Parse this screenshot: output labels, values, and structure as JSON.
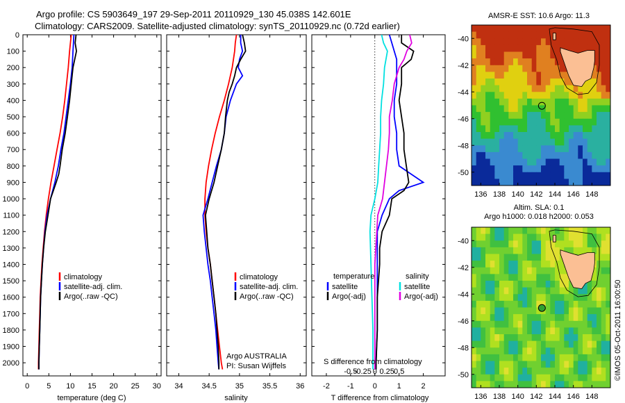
{
  "header": {
    "title_line1": "Argo profile: CS 5903649_197 29-Sep-2011 20110929_130 45.038S 142.601E",
    "title_line2": "Climatology: CARS2009. Satellite-adjusted climatology: synTS_20110929.nc (0.72d earlier)"
  },
  "colors": {
    "climatology": "#ff0000",
    "satellite": "#0000ff",
    "argo": "#000000",
    "satellite_salinity": "#00e0e0",
    "argo_salinity": "#e000e0"
  },
  "chart_data": [
    {
      "type": "line",
      "id": "temperature",
      "xlabel": "temperature (deg C)",
      "ylabel": "",
      "xlim": [
        -1,
        31
      ],
      "ylim": [
        2080,
        0
      ],
      "x_ticks": [
        0,
        5,
        10,
        15,
        20,
        25,
        30
      ],
      "y_ticks": [
        0,
        100,
        200,
        300,
        400,
        500,
        600,
        700,
        800,
        900,
        1000,
        1100,
        1200,
        1300,
        1400,
        1500,
        1600,
        1700,
        1800,
        1900,
        2000
      ],
      "legend": [
        "climatology",
        "satellite-adj. clim.",
        "Argo(..raw -QC)"
      ],
      "series": [
        {
          "name": "climatology",
          "color": "#ff0000",
          "depth": [
            0,
            50,
            100,
            200,
            300,
            400,
            500,
            600,
            700,
            800,
            900,
            1000,
            1100,
            1200,
            1300,
            1400,
            1500,
            1600,
            1700,
            1800,
            1900,
            2000,
            2040
          ],
          "values": [
            10.2,
            10.0,
            9.8,
            9.5,
            9.1,
            8.7,
            8.2,
            7.6,
            6.9,
            6.2,
            5.5,
            4.9,
            4.4,
            4.0,
            3.7,
            3.4,
            3.2,
            3.0,
            2.9,
            2.8,
            2.7,
            2.6,
            2.6
          ]
        },
        {
          "name": "satellite-adj. clim.",
          "color": "#0000ff",
          "depth": [
            0,
            50,
            100,
            200,
            300,
            400,
            500,
            600,
            700,
            800,
            900,
            1000,
            1100,
            1200,
            1300,
            1400,
            1500,
            1600,
            1700,
            1800,
            1900,
            2000,
            2040
          ],
          "values": [
            10.8,
            10.7,
            10.6,
            10.4,
            10.0,
            9.5,
            9.0,
            8.5,
            7.8,
            7.2,
            6.4,
            5.4,
            4.6,
            4.1,
            3.8,
            3.5,
            3.3,
            3.1,
            3.0,
            2.9,
            2.8,
            2.7,
            2.7
          ]
        },
        {
          "name": "Argo(..raw -QC)",
          "color": "#000000",
          "depth": [
            0,
            50,
            100,
            150,
            200,
            300,
            400,
            500,
            600,
            700,
            800,
            850,
            900,
            1000,
            1100,
            1200,
            1300,
            1400,
            1500,
            1600,
            1700,
            1800,
            1900,
            2000,
            2040
          ],
          "values": [
            11.3,
            11.1,
            11.4,
            11.0,
            10.6,
            10.2,
            9.8,
            9.3,
            8.8,
            8.1,
            7.6,
            7.3,
            6.7,
            5.4,
            4.8,
            4.2,
            3.8,
            3.5,
            3.3,
            3.1,
            3.0,
            2.9,
            2.8,
            2.7,
            2.7
          ]
        }
      ]
    },
    {
      "type": "line",
      "id": "salinity",
      "xlabel": "salinity",
      "ylabel": "",
      "xlim": [
        33.8,
        36.1
      ],
      "ylim": [
        2080,
        0
      ],
      "x_ticks": [
        34,
        34.5,
        35,
        35.5,
        36
      ],
      "legend": [
        "climatology",
        "satellite-adj. clim.",
        "Argo(..raw -QC)"
      ],
      "annotation": [
        "Argo AUSTRALIA",
        "PI: Susan Wijffels"
      ],
      "series": [
        {
          "name": "climatology",
          "color": "#ff0000",
          "depth": [
            0,
            50,
            100,
            200,
            300,
            400,
            500,
            600,
            700,
            800,
            900,
            1000,
            1100,
            1200,
            1300,
            1400,
            1500,
            1600,
            1700,
            1800,
            1900,
            2000,
            2040
          ],
          "values": [
            34.95,
            34.93,
            34.92,
            34.88,
            34.82,
            34.75,
            34.67,
            34.6,
            34.54,
            34.49,
            34.45,
            34.43,
            34.43,
            34.45,
            34.48,
            34.52,
            34.55,
            34.58,
            34.61,
            34.64,
            34.67,
            34.7,
            34.72
          ]
        },
        {
          "name": "satellite-adj. clim.",
          "color": "#0000ff",
          "depth": [
            0,
            50,
            100,
            150,
            200,
            250,
            300,
            400,
            500,
            600,
            700,
            800,
            900,
            1000,
            1100,
            1200,
            1300,
            1400,
            1500,
            1600,
            1700,
            1800,
            1900,
            2000,
            2040
          ],
          "values": [
            35.02,
            35.02,
            35.05,
            35.0,
            34.98,
            35.05,
            34.95,
            34.85,
            34.78,
            34.75,
            34.7,
            34.62,
            34.55,
            34.48,
            34.4,
            34.42,
            34.45,
            34.48,
            34.52,
            34.55,
            34.58,
            34.61,
            34.63,
            34.65,
            34.66
          ]
        },
        {
          "name": "Argo(..raw -QC)",
          "color": "#000000",
          "depth": [
            0,
            50,
            100,
            150,
            200,
            250,
            300,
            350,
            400,
            500,
            600,
            700,
            800,
            900,
            1000,
            1100,
            1200,
            1300,
            1400,
            1500,
            1600,
            1700,
            1800,
            1900,
            2000,
            2040
          ],
          "values": [
            35.05,
            35.08,
            35.1,
            35.02,
            34.95,
            34.92,
            34.88,
            34.83,
            34.8,
            34.77,
            34.75,
            34.7,
            34.64,
            34.58,
            34.5,
            34.44,
            34.46,
            34.48,
            34.52,
            34.55,
            34.58,
            34.61,
            34.63,
            34.65,
            34.66,
            34.66
          ]
        }
      ]
    },
    {
      "type": "line",
      "id": "differences",
      "xlabel": "T difference from climatology",
      "xlabel_top": "S difference from climatology",
      "xlim": [
        -2.6,
        2.9
      ],
      "ylim": [
        2080,
        0
      ],
      "x_ticks": [
        -2,
        -1,
        0,
        1,
        2
      ],
      "x_ticks_s": [
        "-0.5",
        "-0.25",
        "0",
        "0.25",
        "0.5"
      ],
      "legend_left_title": "temperature",
      "legend_right_title": "salinity",
      "legend_left": [
        "satellite",
        "Argo(-adj)"
      ],
      "legend_right": [
        "satellite",
        "Argo(-adj)"
      ],
      "series": [
        {
          "name": "satellite",
          "quantity": "temperature",
          "color": "#0000ff",
          "depth": [
            0,
            50,
            100,
            150,
            200,
            300,
            400,
            500,
            600,
            700,
            800,
            850,
            900,
            950,
            1000,
            1100,
            1200,
            1400,
            1600,
            1800,
            2000,
            2040
          ],
          "values": [
            0.6,
            0.7,
            0.8,
            0.9,
            0.9,
            0.9,
            0.8,
            0.8,
            0.9,
            0.9,
            1.0,
            1.5,
            2.0,
            1.0,
            0.6,
            0.3,
            0.1,
            0.1,
            0.1,
            0.1,
            0.05,
            0.05
          ]
        },
        {
          "name": "Argo(-adj)",
          "quantity": "temperature",
          "color": "#000000",
          "depth": [
            0,
            50,
            100,
            150,
            200,
            300,
            400,
            500,
            600,
            700,
            800,
            900,
            950,
            1000,
            1100,
            1200,
            1300,
            1400,
            1600,
            1800,
            2000,
            2040
          ],
          "values": [
            1.1,
            1.1,
            1.6,
            1.5,
            1.1,
            1.1,
            1.0,
            1.1,
            1.2,
            1.2,
            1.3,
            1.4,
            1.2,
            0.7,
            0.6,
            0.3,
            0.2,
            0.2,
            0.1,
            0.1,
            0.05,
            0.05
          ]
        },
        {
          "name": "satellite",
          "quantity": "salinity",
          "color": "#00e0e0",
          "depth": [
            0,
            50,
            100,
            200,
            300,
            400,
            500,
            600,
            700,
            800,
            900,
            1000,
            1100,
            1200,
            1400,
            1600,
            1800,
            2000,
            2040
          ],
          "values": [
            0.07,
            0.09,
            0.13,
            0.1,
            0.09,
            0.07,
            0.06,
            0.06,
            0.05,
            0.04,
            0.03,
            0.0,
            -0.04,
            -0.05,
            -0.04,
            -0.03,
            -0.02,
            -0.02,
            -0.02
          ]
        },
        {
          "name": "Argo(-adj)",
          "quantity": "salinity",
          "color": "#e000e0",
          "depth": [
            0,
            50,
            100,
            150,
            200,
            300,
            400,
            500,
            600,
            700,
            800,
            900,
            1000,
            1100,
            1200,
            1400,
            1600,
            1800,
            2000,
            2040
          ],
          "values": [
            0.36,
            0.38,
            0.33,
            0.3,
            0.25,
            0.2,
            0.18,
            0.15,
            0.15,
            0.14,
            0.12,
            0.1,
            0.08,
            0.03,
            0.02,
            0.0,
            0.0,
            0.0,
            0.0,
            0.0
          ]
        }
      ]
    },
    {
      "type": "heatmap",
      "id": "sst-map",
      "title": "AMSR-E SST: 10.6  Argo: 11.3",
      "x_ticks": [
        "136",
        "138",
        "140",
        "142",
        "144",
        "146",
        "148"
      ],
      "y_ticks": [
        "-40",
        "-42",
        "-44",
        "-46",
        "-48",
        "-50"
      ],
      "xlim": [
        135,
        150
      ],
      "ylim": [
        -51,
        -39
      ],
      "argo_position": {
        "lon": 142.601,
        "lat": -45.038
      },
      "colormap": [
        "#0a2a9a",
        "#3a8ad0",
        "#2ab0a0",
        "#30c030",
        "#90d020",
        "#e0d010",
        "#e08020",
        "#c03010"
      ]
    },
    {
      "type": "heatmap",
      "id": "sla-map",
      "title_line1": "Altim. SLA: 0.1",
      "title_line2": "Argo h1000: 0.018 h2000: 0.053",
      "x_ticks": [
        "136",
        "138",
        "140",
        "142",
        "144",
        "146",
        "148"
      ],
      "y_ticks": [
        "-40",
        "-42",
        "-44",
        "-46",
        "-48",
        "-50"
      ],
      "xlim": [
        135,
        150
      ],
      "ylim": [
        -51,
        -39
      ],
      "argo_position": {
        "lon": 142.601,
        "lat": -45.038
      },
      "colormap": [
        "#20b0a0",
        "#40c040",
        "#70d030",
        "#b0e020",
        "#e0e030"
      ]
    }
  ],
  "watermark": "©IMOS 05-Oct-2011 16:00:50"
}
